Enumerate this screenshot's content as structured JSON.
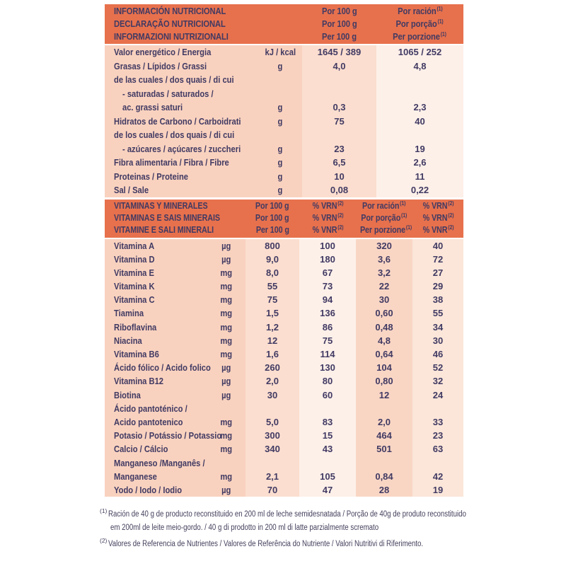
{
  "palette": {
    "header_bg": "#E7714D",
    "text": "#413A63",
    "col_label_bg": "#F9D2BF",
    "band_light": "#FBDECF",
    "band_lighter": "#FDF0E9",
    "band_mid": "#F9D6C4",
    "band_soft": "#FBE6D9"
  },
  "header1": {
    "titles": [
      "INFORMACIÓN NUTRICIONAL",
      "DECLARAÇÃO NUTRICIONAL",
      "INFORMAZIONI NUTRIZIONALI"
    ],
    "per100": [
      "Por 100 g",
      "Por 100 g",
      "Per 100 g"
    ],
    "portion": [
      {
        "text": "Por ración",
        "sup": "(1)"
      },
      {
        "text": "Por porção",
        "sup": "(1)"
      },
      {
        "text": "Per porzione",
        "sup": "(1)"
      }
    ]
  },
  "section1": {
    "rows": [
      {
        "label": "Valor energético / Energia",
        "unit": "kJ / kcal",
        "per100": "1645 / 389",
        "portion": "1065 / 252"
      },
      {
        "label": "Grasas / Lípidos / Grassi",
        "unit": "g",
        "per100": "4,0",
        "portion": "4,8"
      },
      {
        "label": "de las cuales / dos quais / di cui"
      },
      {
        "label": "- saturadas / saturados /",
        "indent": 1
      },
      {
        "label": "ac. grassi saturi",
        "indent": 1,
        "unit": "g",
        "per100": "0,3",
        "portion": "2,3"
      },
      {
        "label": "Hidratos de Carbono / Carboidrati",
        "unit": "g",
        "per100": "75",
        "portion": "40"
      },
      {
        "label": "de los cuales / dos quais / di cui"
      },
      {
        "label": "- azúcares / açúcares / zuccheri",
        "indent": 1,
        "unit": "g",
        "per100": "23",
        "portion": "19"
      },
      {
        "label": "Fibra alimentaria / Fibra / Fibre",
        "unit": "g",
        "per100": "6,5",
        "portion": "2,6"
      },
      {
        "label": "Proteinas / Proteine",
        "unit": "g",
        "per100": "10",
        "portion": "11"
      },
      {
        "label": "Sal / Sale",
        "unit": "g",
        "per100": "0,08",
        "portion": "0,22"
      }
    ]
  },
  "header2": {
    "titles": [
      "VITAMINAS Y MINERALES",
      "VITAMINAS E SAIS MINERAIS",
      "VITAMINE E SALI MINERALI"
    ],
    "per100": [
      "Por 100 g",
      "Por 100 g",
      "Per 100 g"
    ],
    "vrn_a": [
      {
        "text": "% VRN",
        "sup": "(2)"
      },
      {
        "text": "% VRN",
        "sup": "(2)"
      },
      {
        "text": "% VNR",
        "sup": "(2)"
      }
    ],
    "portion": [
      {
        "text": "Por ración",
        "sup": "(1)"
      },
      {
        "text": "Por porção",
        "sup": "(1)"
      },
      {
        "text": "Per porzione",
        "sup": "(1)"
      }
    ],
    "vrn_b": [
      {
        "text": "% VRN",
        "sup": "(2)"
      },
      {
        "text": "% VRN",
        "sup": "(2)"
      },
      {
        "text": "% VNR",
        "sup": "(2)"
      }
    ]
  },
  "section2": {
    "rows": [
      {
        "label": "Vitamina A",
        "unit": "µg",
        "v100": "800",
        "vrn100": "100",
        "vpor": "320",
        "vrnpor": "40"
      },
      {
        "label": "Vitamina D",
        "unit": "µg",
        "v100": "9,0",
        "vrn100": "180",
        "vpor": "3,6",
        "vrnpor": "72"
      },
      {
        "label": "Vitamina E",
        "unit": "mg",
        "v100": "8,0",
        "vrn100": "67",
        "vpor": "3,2",
        "vrnpor": "27"
      },
      {
        "label": "Vitamina K",
        "unit": "mg",
        "v100": "55",
        "vrn100": "73",
        "vpor": "22",
        "vrnpor": "29"
      },
      {
        "label": "Vitamina C",
        "unit": "mg",
        "v100": "75",
        "vrn100": "94",
        "vpor": "30",
        "vrnpor": "38"
      },
      {
        "label": "Tiamina",
        "unit": "mg",
        "v100": "1,5",
        "vrn100": "136",
        "vpor": "0,60",
        "vrnpor": "55"
      },
      {
        "label": "Riboflavina",
        "unit": "mg",
        "v100": "1,2",
        "vrn100": "86",
        "vpor": "0,48",
        "vrnpor": "34"
      },
      {
        "label": "Niacina",
        "unit": "mg",
        "v100": "12",
        "vrn100": "75",
        "vpor": "4,8",
        "vrnpor": "30"
      },
      {
        "label": "Vitamina B6",
        "unit": "mg",
        "v100": "1,6",
        "vrn100": "114",
        "vpor": "0,64",
        "vrnpor": "46"
      },
      {
        "label": "Ácido fólico / Acido folico",
        "unit": "µg",
        "v100": "260",
        "vrn100": "130",
        "vpor": "104",
        "vrnpor": "52"
      },
      {
        "label": "Vitamina B12",
        "unit": "µg",
        "v100": "2,0",
        "vrn100": "80",
        "vpor": "0,80",
        "vrnpor": "32"
      },
      {
        "label": "Biotina",
        "unit": "µg",
        "v100": "30",
        "vrn100": "60",
        "vpor": "12",
        "vrnpor": "24"
      },
      {
        "label": "Ácido pantoténico /"
      },
      {
        "label": "Acido pantotenico",
        "unit": "mg",
        "v100": "5,0",
        "vrn100": "83",
        "vpor": "2,0",
        "vrnpor": "33"
      },
      {
        "label": "Potasio / Potássio / Potassio",
        "unit": "mg",
        "v100": "300",
        "vrn100": "15",
        "vpor": "464",
        "vrnpor": "23"
      },
      {
        "label": "Calcio / Cálcio",
        "unit": "mg",
        "v100": "340",
        "vrn100": "43",
        "vpor": "501",
        "vrnpor": "63"
      },
      {
        "label": "Manganeso /Manganês /"
      },
      {
        "label": "Manganese",
        "unit": "mg",
        "v100": "2,1",
        "vrn100": "105",
        "vpor": "0,84",
        "vrnpor": "42"
      },
      {
        "label": "Yodo / Iodo / Iodio",
        "unit": "µg",
        "v100": "70",
        "vrn100": "47",
        "vpor": "28",
        "vrnpor": "19"
      }
    ]
  },
  "footnotes": [
    {
      "sup": "(1)",
      "lines": [
        "Ración de 40 g de producto reconstituido en 200 ml de leche semidesnatada / Porção de 40g de produto reconstituido",
        "em 200ml de leite meio-gordo. / 40 g di prodotto in 200 ml di latte parzialmente scremato"
      ]
    },
    {
      "sup": "(2)",
      "lines": [
        "Valores de Referencia de Nutrientes / Valores de Referência do Nutriente / Valori Nutritivi di Riferimento."
      ]
    }
  ]
}
